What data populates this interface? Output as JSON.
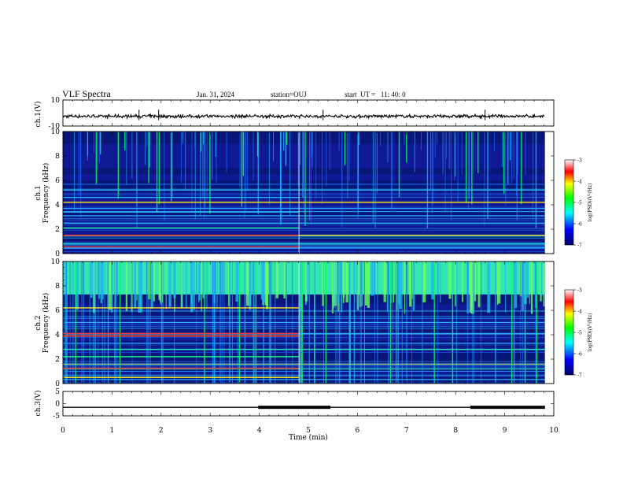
{
  "header": {
    "title": "VLF Spectra",
    "date": "Jan. 31, 2024",
    "station": "station=OUJ",
    "start_ut": "start  UT =   11: 40: 0"
  },
  "chart_data": [
    {
      "type": "line",
      "panel": "ch1-waveform",
      "ylabel": "ch.1(V)",
      "ylim": [
        -10,
        10
      ],
      "ytick_labels": [
        "10",
        "-10"
      ],
      "xlim": [
        0,
        10
      ],
      "baseline": -2.5,
      "spikes_min": [
        1.55,
        1.95,
        5.3,
        8.6
      ]
    },
    {
      "type": "heatmap",
      "panel": "ch1-spectrogram",
      "ylabel": "ch.1\nFrequency (kHz)",
      "ylim": [
        0,
        10
      ],
      "ytick_labels": [
        "0",
        "2",
        "4",
        "6",
        "8",
        "10"
      ],
      "xlim": [
        0,
        9.82
      ],
      "colorbar": {
        "label": "log(PSD)(V²/Hz)",
        "range": [
          -7,
          -3
        ],
        "tick_labels": [
          "-3",
          "-4",
          "-5",
          "-6",
          "-7"
        ]
      },
      "strong_lines_khz": [
        0.45,
        0.8,
        1.5,
        2.1,
        2.5,
        3.1,
        3.4,
        3.7,
        4.2,
        4.6,
        5.2
      ],
      "regime_change_min": 4.8
    },
    {
      "type": "heatmap",
      "panel": "ch2-spectrogram",
      "ylabel": "ch.2\nFrequency (kHz)",
      "ylim": [
        0,
        10
      ],
      "ytick_labels": [
        "0",
        "2",
        "4",
        "6",
        "8",
        "10"
      ],
      "xlim": [
        0,
        9.82
      ],
      "colorbar": {
        "label": "log(PSD)(V²/Hz)",
        "range": [
          -7,
          -3
        ],
        "tick_labels": [
          "-3",
          "-4",
          "-5",
          "-6",
          "-7"
        ]
      },
      "strong_lines_khz": [
        0.5,
        1.2,
        1.6,
        2.2,
        2.8,
        3.3,
        3.9,
        4.1,
        5.0,
        6.2
      ],
      "regime_change_min": 4.8
    },
    {
      "type": "line",
      "panel": "ch3-signal",
      "ylabel": "ch.3(V)",
      "ylim": [
        -5,
        5
      ],
      "ytick_labels": [
        "5",
        "0",
        "-5"
      ],
      "xlim": [
        0,
        10
      ],
      "baseline": -1.5,
      "pulses": [
        [
          3.98,
          5.45
        ],
        [
          8.3,
          9.82
        ]
      ]
    }
  ],
  "xaxis": {
    "label": "Time (min)",
    "range": [
      0,
      10
    ],
    "tick_labels": [
      "0",
      "1",
      "2",
      "3",
      "4",
      "5",
      "6",
      "7",
      "8",
      "9",
      "10"
    ]
  }
}
